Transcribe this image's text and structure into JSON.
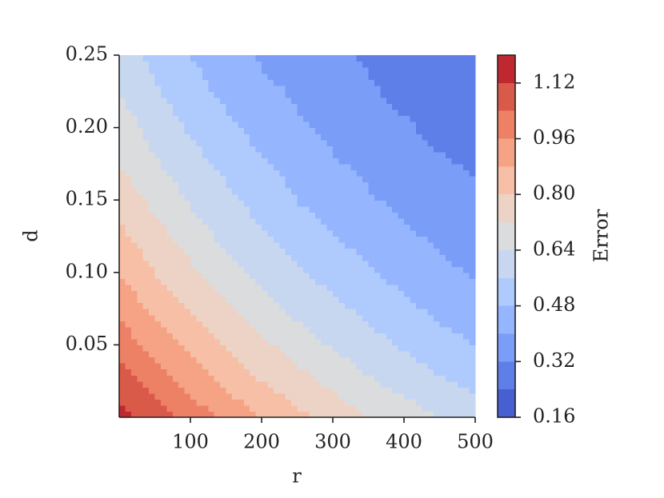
{
  "chart_data": {
    "type": "contour",
    "x_label": "r",
    "y_label": "d",
    "colorbar_label": "Error",
    "xlim": [
      0,
      500
    ],
    "ylim": [
      0,
      0.25
    ],
    "xticks": [
      100,
      200,
      300,
      400,
      500
    ],
    "yticks": [
      0.05,
      {
        "value": 0.1,
        "label": "0.10"
      },
      0.15,
      {
        "value": 0.2,
        "label": "0.20"
      },
      0.25
    ],
    "x": [
      0,
      50,
      100,
      150,
      200,
      250,
      300,
      350,
      400,
      450,
      500
    ],
    "y": [
      0,
      0.025,
      0.05,
      0.075,
      0.1,
      0.125,
      0.15,
      0.175,
      0.2,
      0.225,
      0.25
    ],
    "z": [
      [
        1.16,
        1.08,
        1.01,
        0.94,
        0.88,
        0.82,
        0.77,
        0.72,
        0.68,
        0.64,
        0.6
      ],
      [
        1.08,
        1.0,
        0.93,
        0.86,
        0.8,
        0.75,
        0.7,
        0.65,
        0.61,
        0.57,
        0.54
      ],
      [
        1.01,
        0.93,
        0.86,
        0.79,
        0.74,
        0.68,
        0.63,
        0.59,
        0.55,
        0.51,
        0.48
      ],
      [
        0.94,
        0.86,
        0.79,
        0.73,
        0.67,
        0.62,
        0.58,
        0.54,
        0.5,
        0.46,
        0.43
      ],
      [
        0.88,
        0.8,
        0.74,
        0.67,
        0.62,
        0.57,
        0.53,
        0.49,
        0.45,
        0.42,
        0.39
      ],
      [
        0.82,
        0.75,
        0.68,
        0.62,
        0.57,
        0.52,
        0.48,
        0.45,
        0.41,
        0.39,
        0.36
      ],
      [
        0.77,
        0.7,
        0.63,
        0.58,
        0.53,
        0.48,
        0.44,
        0.41,
        0.38,
        0.35,
        0.33
      ],
      [
        0.72,
        0.65,
        0.59,
        0.54,
        0.49,
        0.45,
        0.41,
        0.38,
        0.35,
        0.33,
        0.31
      ],
      [
        0.68,
        0.61,
        0.55,
        0.5,
        0.45,
        0.41,
        0.38,
        0.35,
        0.33,
        0.3,
        0.28
      ],
      [
        0.64,
        0.57,
        0.51,
        0.46,
        0.42,
        0.39,
        0.35,
        0.33,
        0.3,
        0.28,
        0.27
      ],
      [
        0.6,
        0.54,
        0.48,
        0.43,
        0.39,
        0.36,
        0.33,
        0.31,
        0.28,
        0.27,
        0.25
      ]
    ],
    "levels": [
      0.16,
      0.24,
      0.32,
      0.4,
      0.48,
      0.56,
      0.64,
      0.72,
      0.8,
      0.88,
      0.96,
      1.04,
      1.12,
      1.2
    ],
    "colors": [
      "#485fd1",
      "#5f7fe8",
      "#7a9df8",
      "#95b5fe",
      "#afcafc",
      "#c7d7f0",
      "#dbdcde",
      "#ecd3c5",
      "#f6bfa6",
      "#f6a385",
      "#ec8165",
      "#da5a49",
      "#c0282f"
    ],
    "colorbar_ticks": [
      0.16,
      0.32,
      0.48,
      0.64,
      {
        "value": 0.8,
        "label": "0.80"
      },
      0.96,
      1.12
    ]
  }
}
